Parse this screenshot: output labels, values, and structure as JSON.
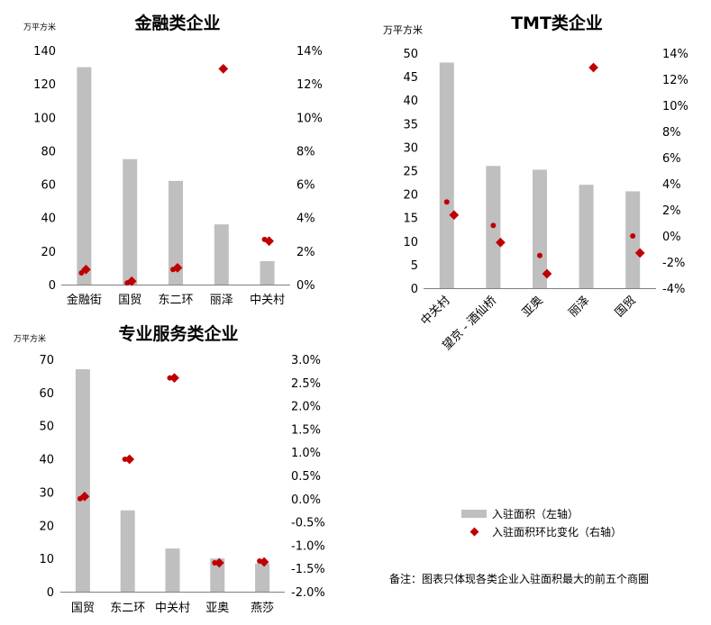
{
  "chart_data": [
    {
      "type": "bar",
      "title": "金融类企业",
      "left_axis_unit": "万平方米",
      "categories": [
        "金融街",
        "国贸",
        "东二环",
        "丽泽",
        "中关村"
      ],
      "left_ticks": [
        "0",
        "20",
        "40",
        "60",
        "80",
        "100",
        "120",
        "140"
      ],
      "right_ticks": [
        "0%",
        "2%",
        "4%",
        "6%",
        "8%",
        "10%",
        "12%",
        "14%"
      ],
      "ylim_left": [
        0,
        140
      ],
      "ylim_right": [
        0,
        14
      ],
      "series": [
        {
          "name": "入驻面积（左轴）",
          "type": "bar",
          "axis": "left",
          "values": [
            130,
            75,
            62,
            36,
            14
          ]
        },
        {
          "name": "入驻面积环比变化（右轴）",
          "type": "scatter",
          "axis": "right",
          "values": [
            0.9,
            0.2,
            1.0,
            12.9,
            2.6
          ]
        }
      ],
      "dot_values": [
        0.7,
        0.1,
        0.9,
        null,
        2.7
      ]
    },
    {
      "type": "bar",
      "title": "TMT类企业",
      "left_axis_unit": "万平方米",
      "categories": [
        "中关村",
        "望京 - 酒仙桥",
        "亚奥",
        "丽泽",
        "国贸"
      ],
      "left_ticks": [
        "0",
        "5",
        "10",
        "15",
        "20",
        "25",
        "30",
        "35",
        "40",
        "45",
        "50"
      ],
      "right_ticks": [
        "-4%",
        "-2%",
        "0%",
        "2%",
        "4%",
        "6%",
        "8%",
        "10%",
        "12%",
        "14%"
      ],
      "ylim_left": [
        0,
        50
      ],
      "ylim_right": [
        -4,
        14
      ],
      "series": [
        {
          "name": "入驻面积（左轴）",
          "type": "bar",
          "axis": "left",
          "values": [
            48,
            26,
            25.2,
            22,
            20.6
          ]
        },
        {
          "name": "入驻面积环比变化（右轴）",
          "type": "scatter",
          "axis": "right",
          "values": [
            1.6,
            -0.5,
            -2.9,
            12.9,
            -1.3
          ]
        }
      ],
      "dot_values": [
        2.6,
        0.8,
        -1.5,
        null,
        0.0
      ]
    },
    {
      "type": "bar",
      "title": "专业服务类企业",
      "left_axis_unit": "万平方米",
      "categories": [
        "国贸",
        "东二环",
        "中关村",
        "亚奥",
        "燕莎"
      ],
      "left_ticks": [
        "0",
        "10",
        "20",
        "30",
        "40",
        "50",
        "60",
        "70"
      ],
      "right_ticks": [
        "-2.0%",
        "-1.5%",
        "-1.0%",
        "-0.5%",
        "0.0%",
        "0.5%",
        "1.0%",
        "1.5%",
        "2.0%",
        "2.5%",
        "3.0%"
      ],
      "ylim_left": [
        0,
        70
      ],
      "ylim_right": [
        -2.0,
        3.0
      ],
      "series": [
        {
          "name": "入驻面积（左轴）",
          "type": "bar",
          "axis": "left",
          "values": [
            67,
            24.5,
            13,
            10,
            8.5
          ]
        },
        {
          "name": "入驻面积环比变化（右轴）",
          "type": "scatter",
          "axis": "right",
          "values": [
            0.05,
            0.85,
            2.6,
            -1.38,
            -1.36
          ]
        }
      ],
      "dot_values": [
        0.0,
        0.85,
        2.6,
        -1.38,
        -1.34
      ]
    }
  ],
  "legend": {
    "bar_label": "入驻面积（左轴）",
    "marker_label": "入驻面积环比变化（右轴）"
  },
  "footnote": "备注：图表只体现各类企业入驻面积最大的前五个商圈",
  "colors": {
    "bar": "#bfbfbf",
    "marker": "#c00000",
    "axis": "#808080"
  }
}
